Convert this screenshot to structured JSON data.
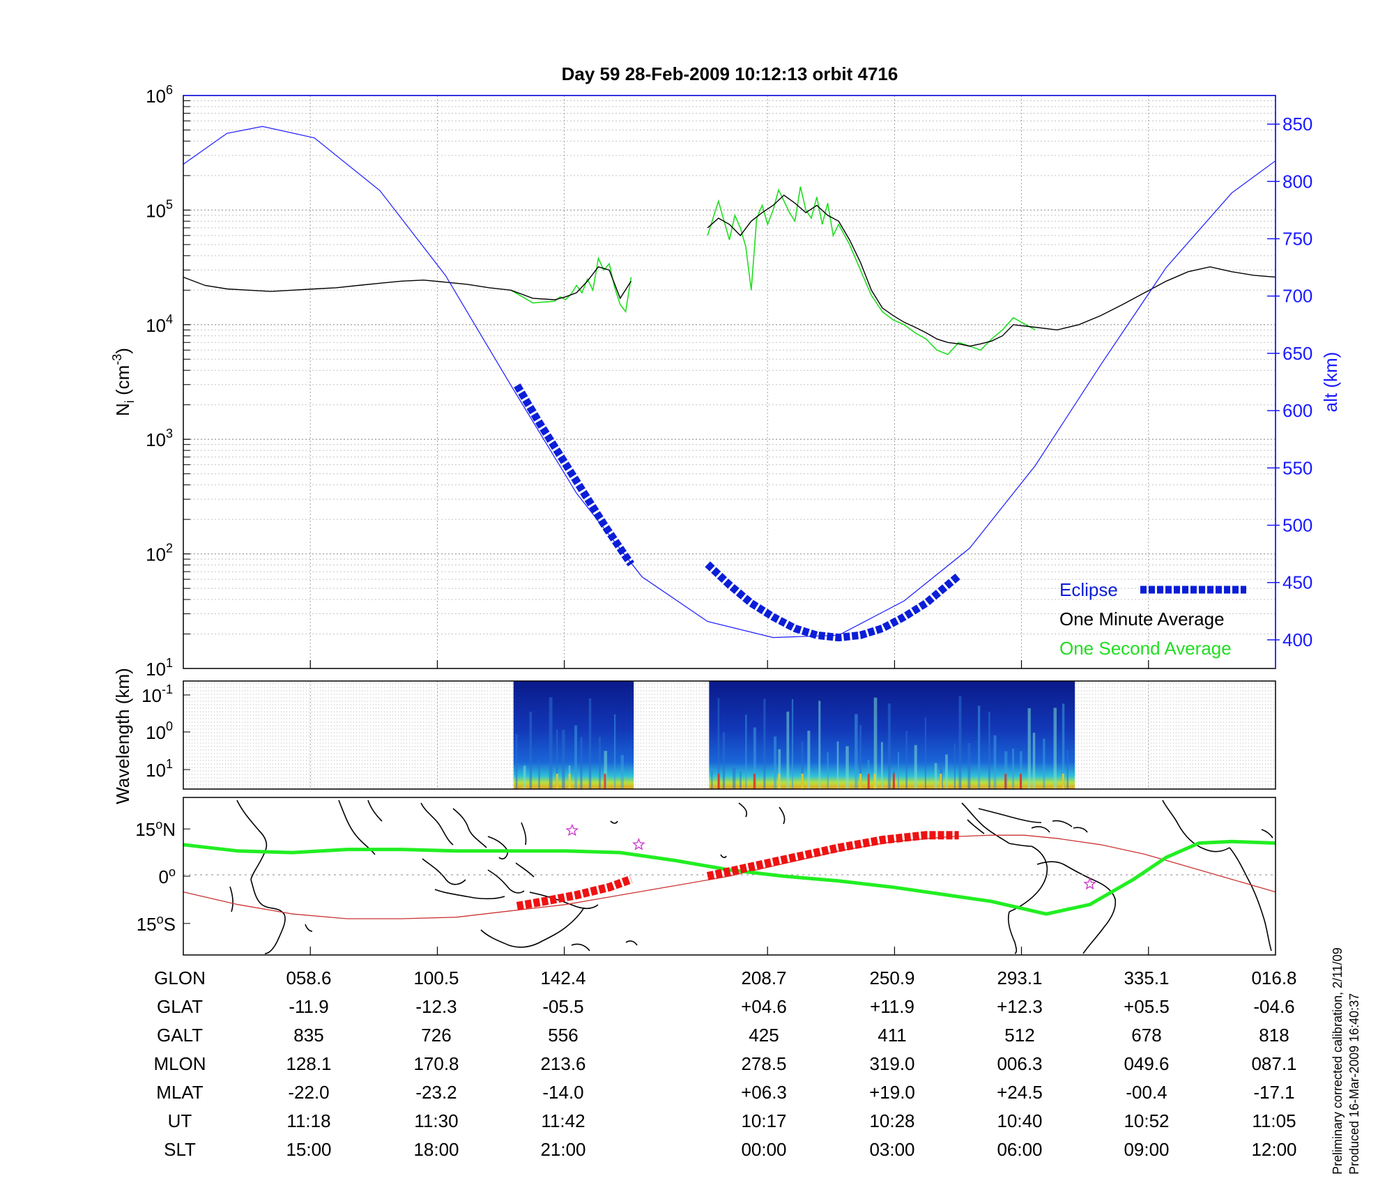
{
  "colors": {
    "altitude": "#1a1aff",
    "eclipse": "#0a1ed8",
    "minute_avg": "#000000",
    "second_avg": "#22dd22",
    "track_eclipse": "#ee1111",
    "magnetic_equator": "#cc3333",
    "ground_track": "#22ee22",
    "spectrogram_bg": "#0a1a7a"
  },
  "chart_data": [
    {
      "type": "line",
      "title": "Day 59  28-Feb-2009 10:12:13   orbit 4716",
      "ylabel": "N",
      "ylabel_sub": "i",
      "ylabel_unit_pre": " (cm",
      "ylabel_unit_exp": "-3",
      "ylabel_unit_post": ")",
      "y_log_scale": true,
      "ylim": [
        10,
        1000000
      ],
      "y_ticks": [
        {
          "base": "10",
          "exp": "1",
          "value": 10
        },
        {
          "base": "10",
          "exp": "2",
          "value": 100
        },
        {
          "base": "10",
          "exp": "3",
          "value": 1000
        },
        {
          "base": "10",
          "exp": "4",
          "value": 10000
        },
        {
          "base": "10",
          "exp": "5",
          "value": 100000
        },
        {
          "base": "10",
          "exp": "6",
          "value": 1000000
        }
      ],
      "y2label": "alt (km)",
      "y2lim": [
        375,
        875
      ],
      "y2_ticks": [
        "400",
        "450",
        "500",
        "550",
        "600",
        "650",
        "700",
        "750",
        "800",
        "850"
      ],
      "xlim": [
        0,
        1
      ],
      "x_grid": [
        0.1163,
        0.2326,
        0.3488,
        0.5349,
        0.6512,
        0.7674,
        0.8837
      ],
      "grid": true,
      "legend_position": "bottom-right",
      "series": [
        {
          "name": "One Second Average",
          "data_x": [
            0.3,
            0.32,
            0.34,
            0.345,
            0.35,
            0.355,
            0.36,
            0.365,
            0.37,
            0.375,
            0.38,
            0.385,
            0.39,
            0.395,
            0.4,
            0.405,
            0.41,
            0.48,
            0.49,
            0.5,
            0.505,
            0.51,
            0.515,
            0.52,
            0.525,
            0.53,
            0.535,
            0.54,
            0.545,
            0.55,
            0.555,
            0.56,
            0.565,
            0.57,
            0.575,
            0.58,
            0.585,
            0.59,
            0.595,
            0.6,
            0.61,
            0.62,
            0.63,
            0.64,
            0.65,
            0.66,
            0.67,
            0.68,
            0.69,
            0.7,
            0.71,
            0.72,
            0.73,
            0.74,
            0.75,
            0.76,
            0.78
          ],
          "data_y": [
            20000,
            15500,
            16000,
            17500,
            16500,
            18500,
            22000,
            19000,
            25000,
            20000,
            38000,
            30000,
            34000,
            21000,
            15000,
            13000,
            26000,
            60000,
            120000,
            55000,
            90000,
            70000,
            48000,
            20000,
            85000,
            110000,
            75000,
            100000,
            150000,
            120000,
            95000,
            80000,
            160000,
            100000,
            85000,
            130000,
            75000,
            115000,
            60000,
            75000,
            50000,
            30000,
            18000,
            13000,
            11000,
            10000,
            8500,
            7500,
            6000,
            5500,
            7000,
            6500,
            6000,
            7500,
            9000,
            11500,
            9000
          ]
        },
        {
          "name": "One Minute Average",
          "data_x": [
            0.0,
            0.02,
            0.04,
            0.06,
            0.08,
            0.1,
            0.12,
            0.14,
            0.16,
            0.18,
            0.2,
            0.22,
            0.24,
            0.26,
            0.28,
            0.3,
            0.32,
            0.34,
            0.35,
            0.36,
            0.37,
            0.38,
            0.39,
            0.4,
            0.41,
            0.48,
            0.49,
            0.5,
            0.51,
            0.52,
            0.53,
            0.54,
            0.55,
            0.56,
            0.57,
            0.58,
            0.59,
            0.6,
            0.61,
            0.62,
            0.63,
            0.64,
            0.65,
            0.66,
            0.67,
            0.68,
            0.69,
            0.7,
            0.71,
            0.72,
            0.73,
            0.74,
            0.75,
            0.76,
            0.78,
            0.8,
            0.82,
            0.84,
            0.86,
            0.88,
            0.9,
            0.92,
            0.94,
            0.96,
            0.98,
            1.0
          ],
          "data_y": [
            26000,
            22000,
            20500,
            20000,
            19500,
            20000,
            20500,
            21000,
            22000,
            23000,
            24000,
            24500,
            23500,
            22500,
            21000,
            20000,
            17000,
            16500,
            17500,
            19000,
            24000,
            32000,
            30000,
            17000,
            24000,
            70000,
            85000,
            75000,
            60000,
            80000,
            95000,
            110000,
            135000,
            115000,
            95000,
            110000,
            90000,
            80000,
            55000,
            35000,
            20000,
            14000,
            12000,
            10500,
            9500,
            8500,
            7500,
            7000,
            6800,
            6500,
            6800,
            7200,
            8000,
            10000,
            9500,
            9000,
            10000,
            12000,
            15000,
            19000,
            24000,
            29000,
            32000,
            29000,
            27000,
            26000
          ],
          "gaps_after_x": [
            0.41
          ]
        },
        {
          "name": "Eclipse",
          "axis": "alt",
          "segments": [
            {
              "data_x": [
                0.3056,
                0.3256,
                0.3456,
                0.3656,
                0.3856,
                0.4056,
                0.41
              ],
              "data_y": [
                622,
                590,
                560,
                530,
                500,
                472,
                466
              ]
            },
            {
              "data_x": [
                0.48,
                0.5,
                0.52,
                0.54,
                0.56,
                0.58,
                0.6,
                0.62,
                0.64,
                0.66,
                0.68,
                0.7,
                0.71
              ],
              "data_y": [
                466,
                448,
                432,
                420,
                410,
                404,
                402,
                404,
                410,
                420,
                432,
                448,
                456
              ]
            }
          ]
        },
        {
          "name": "alt",
          "axis": "alt",
          "data_x": [
            0.0,
            0.04,
            0.0725,
            0.12,
            0.18,
            0.24,
            0.3,
            0.36,
            0.42,
            0.48,
            0.54,
            0.6,
            0.66,
            0.72,
            0.78,
            0.84,
            0.9,
            0.96,
            1.0
          ],
          "data_y": [
            815,
            842,
            848,
            838,
            792,
            718,
            622,
            528,
            455,
            416,
            402,
            404,
            434,
            480,
            552,
            640,
            725,
            790,
            818
          ]
        }
      ],
      "legend": [
        {
          "label": "Eclipse",
          "series": "Eclipse"
        },
        {
          "label": "One Minute Average",
          "series": "One Minute Average"
        },
        {
          "label": "One Second Average",
          "series": "One Second Average"
        }
      ]
    },
    {
      "type": "heatmap",
      "ylabel": "Wavelength (km)",
      "y_ticks": [
        {
          "base": "10",
          "exp": "-1"
        },
        {
          "base": "10",
          "exp": "0"
        },
        {
          "base": "10",
          "exp": "1"
        }
      ],
      "data_blocks": [
        {
          "x_start": 0.3023,
          "x_end": 0.4124
        },
        {
          "x_start": 0.4814,
          "x_end": 0.8163
        }
      ]
    },
    {
      "type": "line",
      "ylim": [
        -25,
        25
      ],
      "y_ticks": [
        {
          "value": 15,
          "label": "15",
          "suffix": "N"
        },
        {
          "value": 0,
          "label": "0",
          "suffix": ""
        },
        {
          "value": -15,
          "label": "15",
          "suffix": "S"
        }
      ],
      "series": [
        {
          "name": "ground track",
          "data_x": [
            0.0,
            0.05,
            0.1,
            0.15,
            0.2,
            0.25,
            0.3,
            0.35,
            0.4,
            0.45,
            0.5,
            0.55,
            0.6,
            0.65,
            0.7,
            0.74,
            0.79,
            0.83,
            0.87,
            0.9,
            0.93,
            0.96,
            1.0
          ],
          "data_y": [
            10,
            8,
            7.5,
            8.5,
            8.5,
            8,
            8,
            8,
            7.5,
            5,
            2,
            0,
            -1.5,
            -3.5,
            -6,
            -8,
            -12,
            -9,
            -1,
            6,
            10.5,
            11,
            10.5
          ]
        },
        {
          "name": "magnetic equator",
          "data_x": [
            0.0,
            0.05,
            0.1,
            0.15,
            0.2,
            0.25,
            0.3,
            0.35,
            0.4,
            0.45,
            0.5,
            0.55,
            0.6,
            0.65,
            0.7,
            0.74,
            0.77,
            0.8,
            0.84,
            0.88,
            0.92,
            0.96,
            1.0
          ],
          "data_y": [
            -5,
            -9,
            -12,
            -13.5,
            -13.5,
            -13,
            -11,
            -9,
            -6,
            -3,
            0,
            4,
            8,
            11,
            12.5,
            13,
            13,
            12,
            10,
            7,
            3,
            -1,
            -5
          ]
        },
        {
          "name": "eclipse track",
          "segments": [
            {
              "data_x": [
                0.3056,
                0.33,
                0.36,
                0.39,
                0.41
              ],
              "data_y": [
                -9.5,
                -8,
                -6,
                -3.5,
                -1
              ]
            },
            {
              "data_x": [
                0.48,
                0.52,
                0.56,
                0.6,
                0.64,
                0.68,
                0.71
              ],
              "data_y": [
                0,
                3,
                6,
                9,
                11.5,
                13,
                13
              ]
            }
          ]
        }
      ],
      "markers": [
        {
          "x": 0.356,
          "y": 14.5,
          "symbol": "star"
        },
        {
          "x": 0.417,
          "y": 10,
          "symbol": "star"
        },
        {
          "x": 0.83,
          "y": -2.5,
          "symbol": "star"
        }
      ]
    }
  ],
  "ephemeris": {
    "rows": [
      {
        "label": "GLON",
        "values": [
          "058.6",
          "100.5",
          "142.4",
          "208.7",
          "250.9",
          "293.1",
          "335.1",
          "016.8"
        ]
      },
      {
        "label": "GLAT",
        "values": [
          "-11.9",
          "-12.3",
          "-05.5",
          "+04.6",
          "+11.9",
          "+12.3",
          "+05.5",
          "-04.6"
        ]
      },
      {
        "label": "GALT",
        "values": [
          "835",
          "726",
          "556",
          "425",
          "411",
          "512",
          "678",
          "818"
        ]
      },
      {
        "label": "MLON",
        "values": [
          "128.1",
          "170.8",
          "213.6",
          "278.5",
          "319.0",
          "006.3",
          "049.6",
          "087.1"
        ]
      },
      {
        "label": "MLAT",
        "values": [
          "-22.0",
          "-23.2",
          "-14.0",
          "+06.3",
          "+19.0",
          "+24.5",
          "-00.4",
          "-17.1"
        ]
      },
      {
        "label": "UT",
        "values": [
          "11:18",
          "11:30",
          "11:42",
          "10:17",
          "10:28",
          "10:40",
          "10:52",
          "11:05"
        ]
      },
      {
        "label": "SLT",
        "values": [
          "15:00",
          "18:00",
          "21:00",
          "00:00",
          "03:00",
          "06:00",
          "09:00",
          "12:00"
        ]
      }
    ]
  },
  "footnotes": {
    "calibration": "Preliminary corrected calibration, 2/11/09",
    "produced": "Produced 16-Mar-2009 16:40:37"
  }
}
